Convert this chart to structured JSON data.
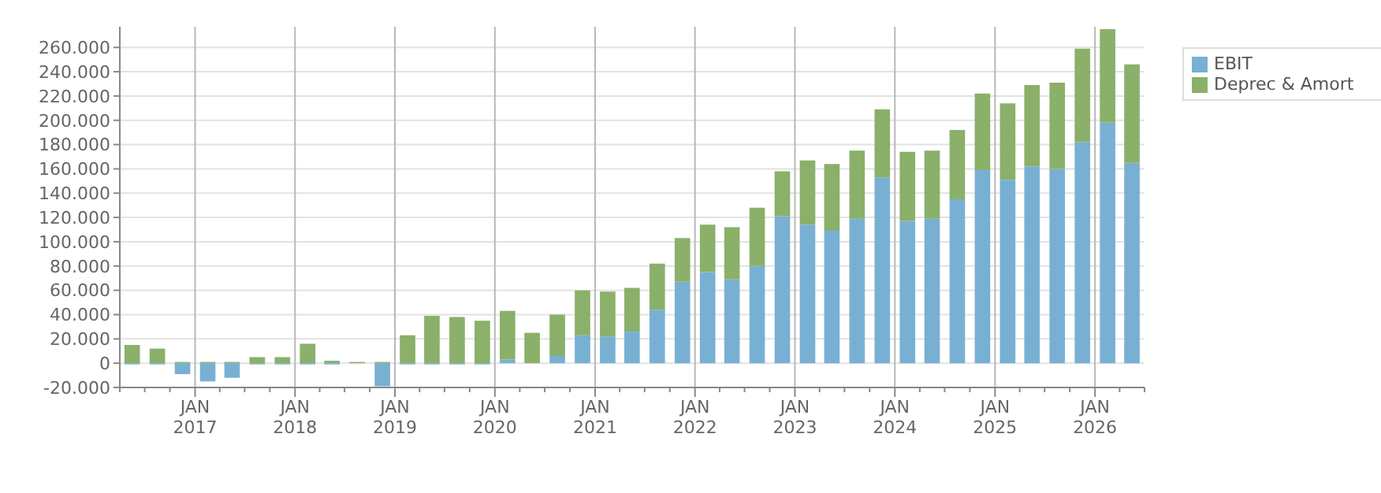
{
  "chart_data": {
    "type": "bar",
    "stacked": true,
    "legend": "top right",
    "grid": true,
    "x": [
      "2016-05-15",
      "2016-08-15",
      "2016-11-15",
      "2017-02-15",
      "2017-05-15",
      "2017-08-15",
      "2017-11-15",
      "2018-02-15",
      "2018-05-15",
      "2018-08-15",
      "2018-11-15",
      "2019-02-15",
      "2019-05-15",
      "2019-08-15",
      "2019-11-15",
      "2020-02-15",
      "2020-05-15",
      "2020-08-15",
      "2020-11-15",
      "2021-02-15",
      "2021-05-15",
      "2021-08-15",
      "2021-11-15",
      "2022-02-15",
      "2022-05-15",
      "2022-08-15",
      "2022-11-15",
      "2023-02-15",
      "2023-05-15",
      "2023-08-15",
      "2023-11-15",
      "2024-02-15",
      "2024-05-15",
      "2024-08-15",
      "2024-11-15",
      "2025-02-15",
      "2025-05-15",
      "2025-08-15",
      "2025-11-15",
      "2026-02-15",
      "2026-05-15"
    ],
    "series": [
      {
        "name": "EBIT",
        "color": "#78b0d4",
        "values": [
          -1000,
          -1000,
          -9000,
          -15000,
          -12000,
          -1000,
          -1000,
          -1000,
          -1000,
          0,
          -19000,
          -1000,
          -1000,
          -1000,
          -1000,
          3000,
          0,
          6000,
          23000,
          22000,
          26000,
          44000,
          67000,
          75000,
          69000,
          80000,
          121000,
          114000,
          109000,
          119000,
          153000,
          117000,
          119000,
          135000,
          159000,
          151000,
          162000,
          160000,
          182000,
          198000,
          165000
        ]
      },
      {
        "name": "Deprec & Amort",
        "color": "#8ab06a",
        "values": [
          15000,
          12000,
          1000,
          1000,
          1000,
          5000,
          5000,
          16000,
          2000,
          1000,
          1000,
          23000,
          39000,
          38000,
          35000,
          40000,
          25000,
          34000,
          37000,
          37000,
          36000,
          38000,
          36000,
          39000,
          43000,
          48000,
          37000,
          53000,
          55000,
          56000,
          56000,
          57000,
          56000,
          57000,
          63000,
          63000,
          67000,
          71000,
          77000,
          77000,
          81000
        ]
      }
    ],
    "xlim": [
      "2016-04-01",
      "2026-07-01"
    ],
    "xticks": [
      {
        "value": "2016-04-01",
        "label": null
      },
      {
        "value": "2016-07-01",
        "label": null
      },
      {
        "value": "2016-10-01",
        "label": null
      },
      {
        "value": "2017-01-01",
        "label": "JAN\n2017"
      },
      {
        "value": "2017-04-01",
        "label": null
      },
      {
        "value": "2017-07-01",
        "label": null
      },
      {
        "value": "2017-10-01",
        "label": null
      },
      {
        "value": "2018-01-01",
        "label": "JAN\n2018"
      },
      {
        "value": "2018-04-01",
        "label": null
      },
      {
        "value": "2018-07-01",
        "label": null
      },
      {
        "value": "2018-10-01",
        "label": null
      },
      {
        "value": "2019-01-01",
        "label": "JAN\n2019"
      },
      {
        "value": "2019-04-01",
        "label": null
      },
      {
        "value": "2019-07-01",
        "label": null
      },
      {
        "value": "2019-10-01",
        "label": null
      },
      {
        "value": "2020-01-01",
        "label": "JAN\n2020"
      },
      {
        "value": "2020-04-01",
        "label": null
      },
      {
        "value": "2020-07-01",
        "label": null
      },
      {
        "value": "2020-10-01",
        "label": null
      },
      {
        "value": "2021-01-01",
        "label": "JAN\n2021"
      },
      {
        "value": "2021-04-01",
        "label": null
      },
      {
        "value": "2021-07-01",
        "label": null
      },
      {
        "value": "2021-10-01",
        "label": null
      },
      {
        "value": "2022-01-01",
        "label": "JAN\n2022"
      },
      {
        "value": "2022-04-01",
        "label": null
      },
      {
        "value": "2022-07-01",
        "label": null
      },
      {
        "value": "2022-10-01",
        "label": null
      },
      {
        "value": "2023-01-01",
        "label": "JAN\n2023"
      },
      {
        "value": "2023-04-01",
        "label": null
      },
      {
        "value": "2023-07-01",
        "label": null
      },
      {
        "value": "2023-10-01",
        "label": null
      },
      {
        "value": "2024-01-01",
        "label": "JAN\n2024"
      },
      {
        "value": "2024-04-01",
        "label": null
      },
      {
        "value": "2024-07-01",
        "label": null
      },
      {
        "value": "2024-10-01",
        "label": null
      },
      {
        "value": "2025-01-01",
        "label": "JAN\n2025"
      },
      {
        "value": "2025-04-01",
        "label": null
      },
      {
        "value": "2025-07-01",
        "label": null
      },
      {
        "value": "2025-10-01",
        "label": null
      },
      {
        "value": "2026-01-01",
        "label": "JAN\n2026"
      },
      {
        "value": "2026-04-01",
        "label": null
      },
      {
        "value": "2026-07-01",
        "label": null
      }
    ],
    "ylim": [
      -20000,
      277000
    ],
    "yticks": [
      {
        "value": -20000,
        "label": "-20.000"
      },
      0,
      {
        "value": 20000,
        "label": "20.000"
      },
      {
        "value": 40000,
        "label": "40.000"
      },
      {
        "value": 60000,
        "label": "60.000"
      },
      {
        "value": 80000,
        "label": "80.000"
      },
      {
        "value": 100000,
        "label": "100.000"
      },
      {
        "value": 120000,
        "label": "120.000"
      },
      {
        "value": 140000,
        "label": "140.000"
      },
      {
        "value": 160000,
        "label": "160.000"
      },
      {
        "value": 180000,
        "label": "180.000"
      },
      {
        "value": 200000,
        "label": "200.000"
      },
      {
        "value": 220000,
        "label": "220.000"
      },
      {
        "value": 240000,
        "label": "240.000"
      },
      {
        "value": 260000,
        "label": "260.000"
      }
    ]
  }
}
